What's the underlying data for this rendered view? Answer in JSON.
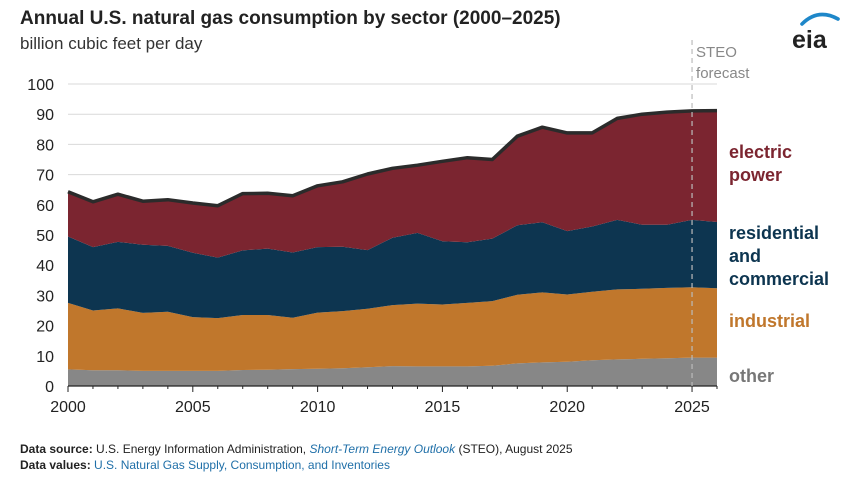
{
  "header": {
    "title": "Annual U.S. natural gas consumption by sector (2000–2025)",
    "subtitle": "billion cubic feet per day",
    "logo_text": "eia"
  },
  "forecast_label": [
    "STEO",
    "forecast"
  ],
  "sector_labels": {
    "electric": [
      "electric",
      "power"
    ],
    "residential": [
      "residential",
      "and",
      "commercial"
    ],
    "industrial": "industrial",
    "other": "other"
  },
  "footer": {
    "source_label": "Data source:",
    "source_text": "U.S. Energy Information Administration,",
    "source_link": "Short-Term Energy Outlook",
    "source_tail": "(STEO), August 2025",
    "values_label": "Data values:",
    "values_link": "U.S. Natural Gas Supply, Consumption, and Inventories"
  },
  "colors": {
    "electric": "#7b2530",
    "residential": "#0d3550",
    "industrial": "#c0772c",
    "other": "#878787",
    "total_line": "#2b2b2b",
    "logo_blue": "#1e87c9"
  },
  "chart_data": {
    "type": "area",
    "stacked": true,
    "title": "Annual U.S. natural gas consumption by sector (2000–2025)",
    "ylabel": "billion cubic feet per day",
    "xlim": [
      2000,
      2026
    ],
    "ylim": [
      0,
      100
    ],
    "xticks": [
      2000,
      2005,
      2010,
      2015,
      2020,
      2025
    ],
    "yticks": [
      0,
      10,
      20,
      30,
      40,
      50,
      60,
      70,
      80,
      90,
      100
    ],
    "forecast_start": 2025,
    "grid": "horizontal",
    "x": [
      2000,
      2001,
      2002,
      2003,
      2004,
      2005,
      2006,
      2007,
      2008,
      2009,
      2010,
      2011,
      2012,
      2013,
      2014,
      2015,
      2016,
      2017,
      2018,
      2019,
      2020,
      2021,
      2022,
      2023,
      2024,
      2025,
      2026
    ],
    "series": [
      {
        "name": "other",
        "values": [
          5.5,
          5.2,
          5.2,
          5.0,
          5.0,
          5.0,
          5.0,
          5.3,
          5.4,
          5.6,
          5.7,
          5.9,
          6.2,
          6.6,
          6.5,
          6.5,
          6.5,
          6.7,
          7.5,
          7.8,
          8.0,
          8.5,
          8.8,
          9.0,
          9.2,
          9.4,
          9.4
        ]
      },
      {
        "name": "industrial",
        "values": [
          22.0,
          19.8,
          20.5,
          19.2,
          19.6,
          17.8,
          17.5,
          18.2,
          18.1,
          17.0,
          18.6,
          18.9,
          19.4,
          20.2,
          20.8,
          20.5,
          21.0,
          21.4,
          22.7,
          23.2,
          22.3,
          22.7,
          23.2,
          23.2,
          23.3,
          23.3,
          23.0
        ]
      },
      {
        "name": "residential and commercial",
        "values": [
          22.0,
          21.0,
          22.0,
          22.6,
          21.8,
          21.3,
          20.0,
          21.4,
          22.0,
          21.6,
          21.7,
          21.3,
          19.4,
          22.3,
          23.4,
          20.9,
          20.1,
          20.7,
          23.0,
          23.2,
          21.0,
          21.6,
          23.0,
          21.2,
          20.9,
          22.3,
          21.9
        ]
      },
      {
        "name": "electric power",
        "values": [
          14.8,
          15.0,
          15.8,
          14.4,
          15.3,
          16.5,
          17.2,
          18.8,
          18.3,
          18.8,
          20.3,
          21.5,
          25.2,
          23.0,
          22.4,
          26.5,
          28.0,
          26.2,
          29.5,
          31.5,
          32.5,
          31.0,
          33.6,
          36.6,
          37.3,
          36.1,
          36.9
        ]
      }
    ]
  }
}
